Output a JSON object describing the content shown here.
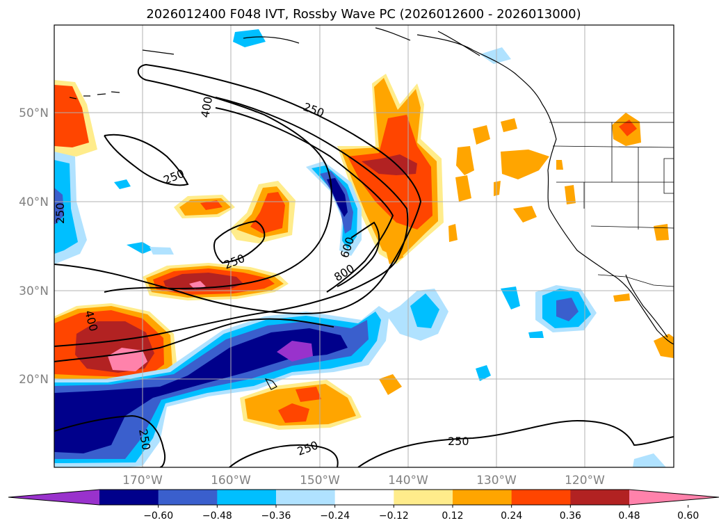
{
  "title": "2026012400 F048 IVT, Rossby Wave PC (2026012600 - 2026013000)",
  "lat_labels": [
    "50°N",
    "40°N",
    "30°N",
    "20°N"
  ],
  "lon_labels": [
    "170°W",
    "160°W",
    "150°W",
    "140°W",
    "130°W",
    "120°W"
  ],
  "contour_labels": [
    "250",
    "400",
    "250",
    "250",
    "250",
    "600",
    "800",
    "400",
    "250",
    "250",
    "250",
    "250"
  ],
  "colorbar": {
    "ticks": [
      "−0.60",
      "−0.48",
      "−0.36",
      "−0.24",
      "−0.12",
      "0.12",
      "0.24",
      "0.36",
      "0.48",
      "0.60"
    ],
    "colors": [
      "#9932cc",
      "#00008b",
      "#3a5fcd",
      "#00bfff",
      "#b0e2ff",
      "#ffffff",
      "#ffec8b",
      "#ffa500",
      "#ff4500",
      "#b22222",
      "#ff82ab"
    ]
  },
  "chart_data": {
    "type": "heatmap",
    "title": "2026012400 F048 IVT, Rossby Wave PC (2026012600 - 2026013000)",
    "lat_ticks": [
      "50°N",
      "40°N",
      "30°N",
      "20°N"
    ],
    "lon_ticks": [
      "170°W",
      "160°W",
      "150°W",
      "140°W",
      "130°W",
      "120°W"
    ],
    "extent": {
      "lon_min": -180,
      "lon_max": -110,
      "lat_min": 10,
      "lat_max": 60
    },
    "contour_levels": [
      250,
      400,
      600,
      800
    ],
    "colorbar_levels": [
      -0.6,
      -0.48,
      -0.36,
      -0.24,
      -0.12,
      0.12,
      0.24,
      0.36,
      0.48,
      0.6
    ],
    "colorbar_extend": "both",
    "grid": true
  }
}
